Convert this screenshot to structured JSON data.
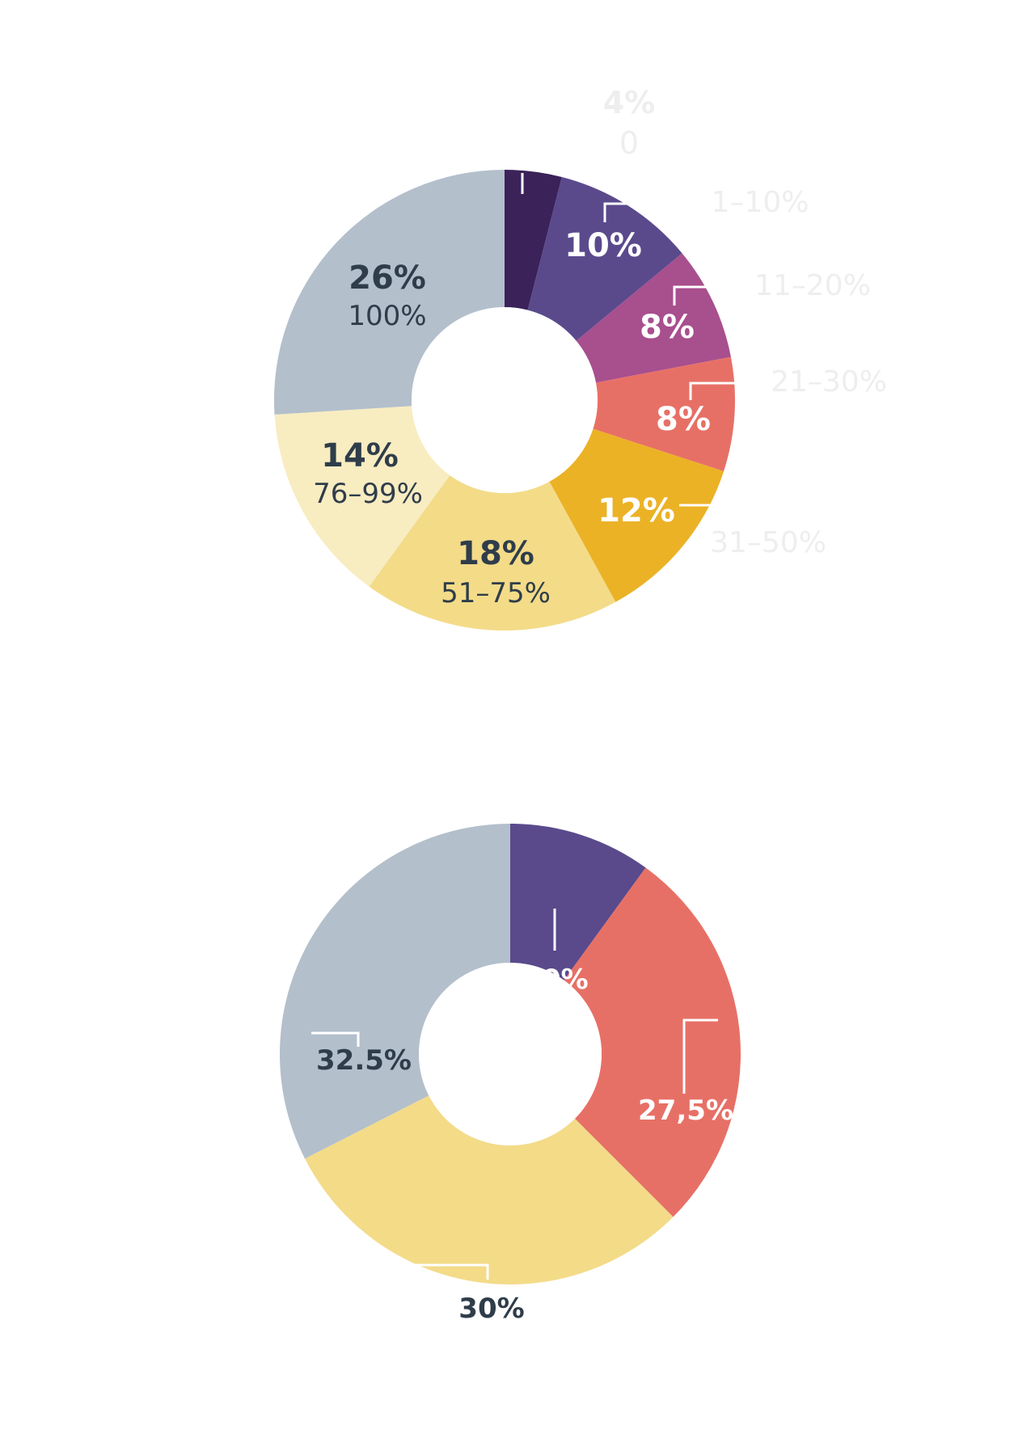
{
  "colors": {
    "dark_navy_text": "#2f3d4a",
    "white_text": "#ffffff",
    "leader_line": "#ffffff",
    "faded_outside_label": "#eeeeee"
  },
  "chart_data": [
    {
      "type": "pie",
      "variant": "donut",
      "title": "",
      "slices": [
        {
          "value_label": "4%",
          "range_label": "0",
          "value": 4,
          "color": "#3b2259",
          "value_text_color": "#ffffff",
          "range_text_color": "#eeeeee",
          "label_placement": "outside"
        },
        {
          "value_label": "10%",
          "range_label": "1–10%",
          "value": 10,
          "color": "#5a4a8c",
          "value_text_color": "#ffffff",
          "range_text_color": "#eeeeee",
          "label_placement": "outside"
        },
        {
          "value_label": "8%",
          "range_label": "11–20%",
          "value": 8,
          "color": "#a84f8e",
          "value_text_color": "#ffffff",
          "range_text_color": "#eeeeee",
          "label_placement": "outside"
        },
        {
          "value_label": "8%",
          "range_label": "21–30%",
          "value": 8,
          "color": "#e77066",
          "value_text_color": "#ffffff",
          "range_text_color": "#eeeeee",
          "label_placement": "outside"
        },
        {
          "value_label": "12%",
          "range_label": "31–50%",
          "value": 12,
          "color": "#ebb226",
          "value_text_color": "#ffffff",
          "range_text_color": "#eeeeee",
          "label_placement": "outside"
        },
        {
          "value_label": "18%",
          "range_label": "51–75%",
          "value": 18,
          "color": "#f3db88",
          "value_text_color": "#2f3d4a",
          "range_text_color": "#2f3d4a",
          "label_placement": "inside"
        },
        {
          "value_label": "14%",
          "range_label": "76–99%",
          "value": 14,
          "color": "#f8ecc1",
          "value_text_color": "#2f3d4a",
          "range_text_color": "#2f3d4a",
          "label_placement": "inside"
        },
        {
          "value_label": "26%",
          "range_label": "100%",
          "value": 26,
          "color": "#b3bfcb",
          "value_text_color": "#2f3d4a",
          "range_text_color": "#2f3d4a",
          "label_placement": "inside"
        }
      ]
    },
    {
      "type": "pie",
      "variant": "donut",
      "title": "",
      "slices": [
        {
          "value_label": "10%",
          "value": 10,
          "color": "#5a4a8c",
          "value_text_color": "#ffffff"
        },
        {
          "value_label": "27,5%",
          "value": 27.5,
          "color": "#e77066",
          "value_text_color": "#ffffff"
        },
        {
          "value_label": "30%",
          "value": 30,
          "color": "#f3db88",
          "value_text_color": "#2f3d4a"
        },
        {
          "value_label": "32.5%",
          "value": 32.5,
          "color": "#b3bfcb",
          "value_text_color": "#2f3d4a"
        }
      ]
    }
  ]
}
